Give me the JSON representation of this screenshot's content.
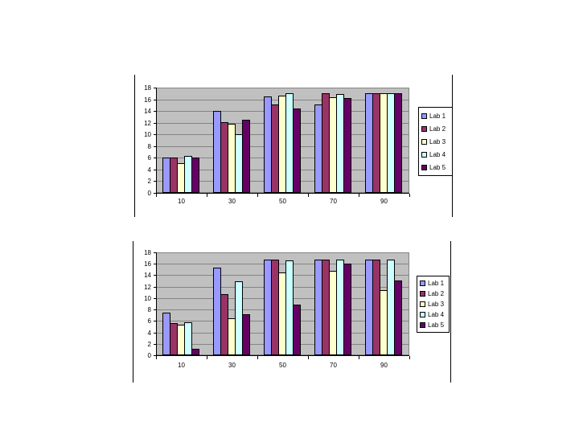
{
  "page": {
    "background_color": "#ffffff",
    "plot_background_color": "#c0c0c0",
    "gridline_color": "#848484",
    "bar_border_color": "#000000"
  },
  "chart_data": [
    {
      "type": "bar",
      "position": "top",
      "title": "",
      "xlabel": "",
      "ylabel": "",
      "categories": [
        "10",
        "30",
        "50",
        "70",
        "90"
      ],
      "series": [
        {
          "name": "Lab 1",
          "color": "#9999ff",
          "values": [
            6,
            14,
            16.5,
            15.1,
            17
          ]
        },
        {
          "name": "Lab 2",
          "color": "#993366",
          "values": [
            6,
            12.1,
            15.1,
            17,
            17
          ]
        },
        {
          "name": "Lab 3",
          "color": "#ffffcc",
          "values": [
            5.1,
            11.8,
            16.6,
            16.3,
            17
          ]
        },
        {
          "name": "Lab 4",
          "color": "#ccffff",
          "values": [
            6.3,
            10,
            17.1,
            16.9,
            17
          ]
        },
        {
          "name": "Lab 5",
          "color": "#660066",
          "values": [
            6,
            12.5,
            14.4,
            16.2,
            17
          ]
        }
      ],
      "ylim": [
        0,
        18
      ],
      "ytick_step": 2,
      "ytick_labels": [
        "18",
        "16",
        "14",
        "12",
        "10",
        "8",
        "6",
        "4",
        "2",
        "0"
      ],
      "grid": true,
      "legend_position": "right",
      "legend_entries": [
        "Lab 1",
        "Lab 2",
        "Lab 3",
        "Lab 4",
        "Lab 5"
      ]
    },
    {
      "type": "bar",
      "position": "bottom",
      "title": "",
      "xlabel": "",
      "ylabel": "",
      "categories": [
        "10",
        "30",
        "50",
        "70",
        "90"
      ],
      "series": [
        {
          "name": "Lab 1",
          "color": "#9999ff",
          "values": [
            7.4,
            15.3,
            16.7,
            16.7,
            16.7
          ]
        },
        {
          "name": "Lab 2",
          "color": "#993366",
          "values": [
            5.6,
            10.7,
            16.7,
            16.7,
            16.7
          ]
        },
        {
          "name": "Lab 3",
          "color": "#ffffcc",
          "values": [
            5.4,
            6.5,
            14.5,
            14.8,
            11.4
          ]
        },
        {
          "name": "Lab 4",
          "color": "#ccffff",
          "values": [
            5.7,
            12.9,
            16.6,
            16.7,
            16.7
          ]
        },
        {
          "name": "Lab 5",
          "color": "#660066",
          "values": [
            1.1,
            7.2,
            8.9,
            16.1,
            13.1
          ]
        }
      ],
      "ylim": [
        0,
        18
      ],
      "ytick_step": 2,
      "ytick_labels": [
        "18",
        "16",
        "14",
        "12",
        "10",
        "8",
        "6",
        "4",
        "2",
        "0"
      ],
      "grid": true,
      "legend_position": "right",
      "legend_entries": [
        "Lab 1",
        "Lab 2",
        "Lab 3",
        "Lab 4",
        "Lab 5"
      ]
    }
  ]
}
